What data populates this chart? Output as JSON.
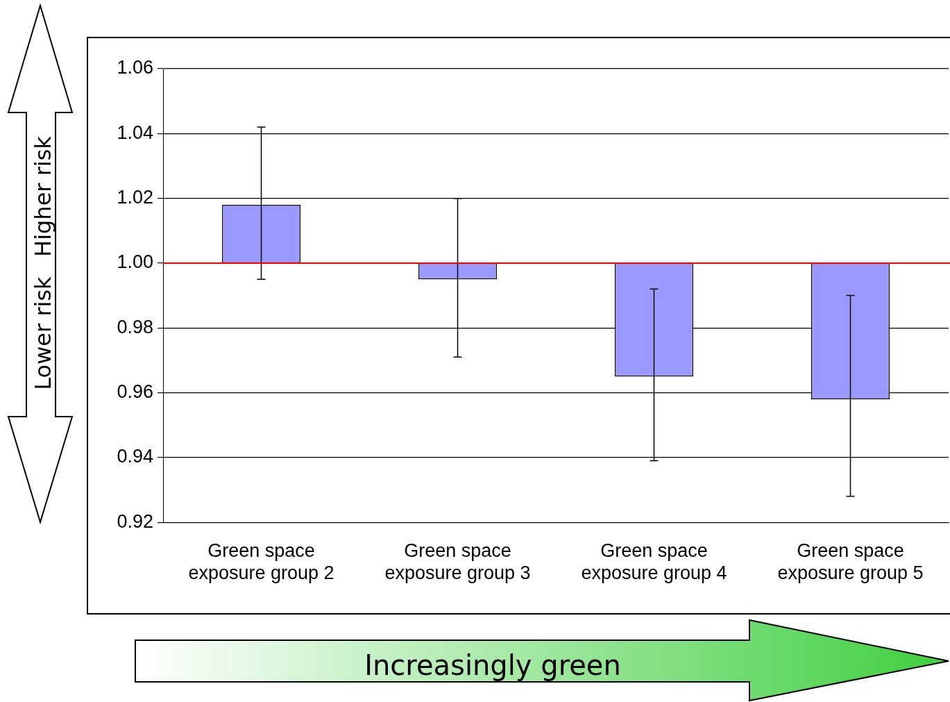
{
  "chart_data": {
    "type": "bar",
    "categories": [
      "Green space exposure group 2",
      "Green space exposure group 3",
      "Green space exposure group 4",
      "Green space exposure group 5"
    ],
    "base": [
      1,
      1,
      1,
      1
    ],
    "values": [
      0.018,
      -0.005,
      -0.035,
      -0.042
    ],
    "errors": [
      [
        0.995,
        1.042
      ],
      [
        0.971,
        1.02
      ],
      [
        0.939,
        0.992
      ],
      [
        0.928,
        0.99
      ]
    ],
    "color": "#9999ff",
    "ylim": [
      0.92,
      1.06
    ],
    "yticks": [
      0.92,
      0.94,
      0.96,
      0.98,
      {
        "value": 1,
        "label": "1.00"
      },
      1.02,
      1.04,
      1.06
    ],
    "grid": "y",
    "legend": false,
    "ref_lines": [
      {
        "axis": "y",
        "value": 1,
        "color": "#ff0000"
      }
    ],
    "annotations": [
      "Lower risk",
      "Higher risk",
      "Increasingly green"
    ]
  }
}
